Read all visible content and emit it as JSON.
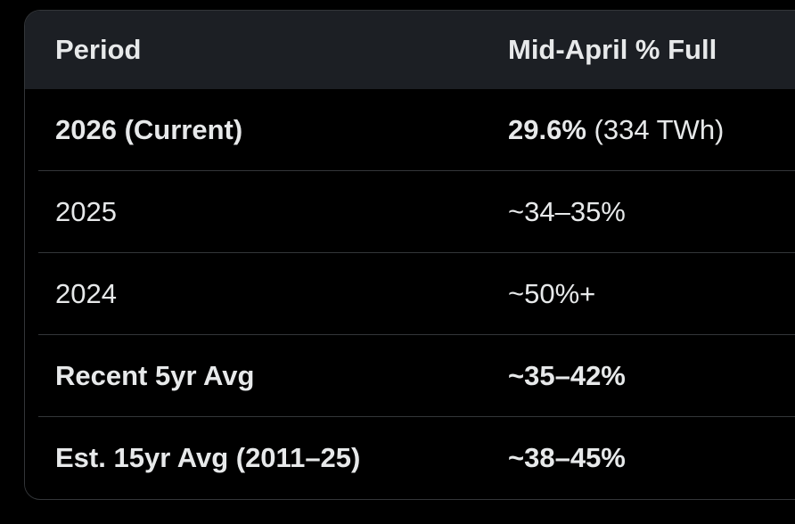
{
  "table": {
    "columns": [
      "Period",
      "Mid-April % Full"
    ],
    "rows": [
      {
        "period": "2026 (Current)",
        "period_bold": true,
        "value": "29.6%",
        "value_bold": true,
        "value_note": " (334 TWh)"
      },
      {
        "period": "2025",
        "period_bold": false,
        "value": "~34–35%",
        "value_bold": false,
        "value_note": ""
      },
      {
        "period": "2024",
        "period_bold": false,
        "value": "~50%+",
        "value_bold": false,
        "value_note": ""
      },
      {
        "period": "Recent 5yr Avg",
        "period_bold": true,
        "value": "~35–42%",
        "value_bold": true,
        "value_note": ""
      },
      {
        "period": "Est. 15yr Avg (2011–25)",
        "period_bold": true,
        "value": "~38–45%",
        "value_bold": true,
        "value_note": ""
      }
    ]
  },
  "chart_data": {
    "type": "table",
    "title": "",
    "columns": [
      "Period",
      "Mid-April % Full"
    ],
    "rows": [
      [
        "2026 (Current)",
        "29.6% (334 TWh)"
      ],
      [
        "2025",
        "~34–35%"
      ],
      [
        "2024",
        "~50%+"
      ],
      [
        "Recent 5yr Avg",
        "~35–42%"
      ],
      [
        "Est. 15yr Avg (2011–25)",
        "~38–45%"
      ]
    ]
  },
  "colors": {
    "page_background": "#000000",
    "header_background": "#1c1f24",
    "row_background": "#000000",
    "divider": "#333639",
    "card_border": "#333639",
    "text": "#e7e9ea"
  }
}
